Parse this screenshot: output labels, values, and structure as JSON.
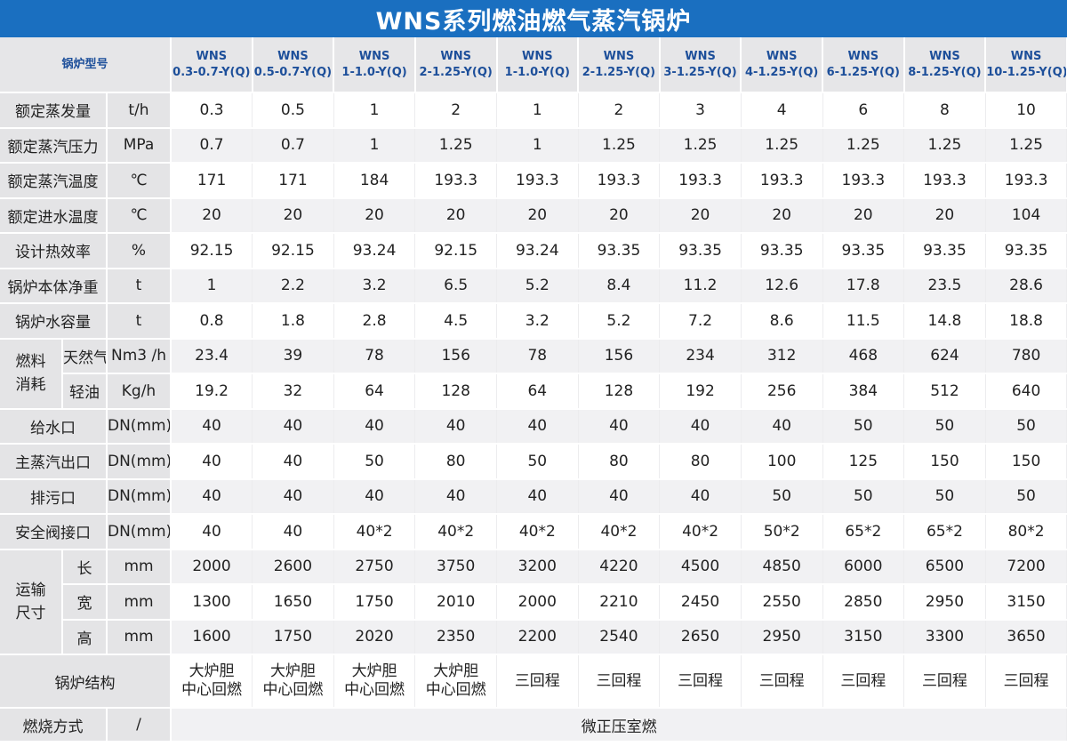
{
  "title": "WNS系列燃油燃气蒸汽锅炉",
  "header": {
    "label": "锅炉型号",
    "models": [
      [
        "WNS",
        "0.3-0.7-Y(Q)"
      ],
      [
        "WNS",
        "0.5-0.7-Y(Q)"
      ],
      [
        "WNS",
        "1-1.0-Y(Q)"
      ],
      [
        "WNS",
        "2-1.25-Y(Q)"
      ],
      [
        "WNS",
        "1-1.0-Y(Q)"
      ],
      [
        "WNS",
        "2-1.25-Y(Q)"
      ],
      [
        "WNS",
        "3-1.25-Y(Q)"
      ],
      [
        "WNS",
        "4-1.25-Y(Q)"
      ],
      [
        "WNS",
        "6-1.25-Y(Q)"
      ],
      [
        "WNS",
        "8-1.25-Y(Q)"
      ],
      [
        "WNS",
        "10-1.25-Y(Q)"
      ]
    ]
  },
  "rows": [
    {
      "label": "额定蒸发量",
      "unit": "t/h",
      "values": [
        "0.3",
        "0.5",
        "1",
        "2",
        "1",
        "2",
        "3",
        "4",
        "6",
        "8",
        "10"
      ]
    },
    {
      "label": "额定蒸汽压力",
      "unit": "MPa",
      "values": [
        "0.7",
        "0.7",
        "1",
        "1.25",
        "1",
        "1.25",
        "1.25",
        "1.25",
        "1.25",
        "1.25",
        "1.25"
      ]
    },
    {
      "label": "额定蒸汽温度",
      "unit": "℃",
      "values": [
        "171",
        "171",
        "184",
        "193.3",
        "193.3",
        "193.3",
        "193.3",
        "193.3",
        "193.3",
        "193.3",
        "193.3"
      ]
    },
    {
      "label": "额定进水温度",
      "unit": "℃",
      "values": [
        "20",
        "20",
        "20",
        "20",
        "20",
        "20",
        "20",
        "20",
        "20",
        "20",
        "104"
      ]
    },
    {
      "label": "设计热效率",
      "unit": "%",
      "values": [
        "92.15",
        "92.15",
        "93.24",
        "92.15",
        "93.24",
        "93.35",
        "93.35",
        "93.35",
        "93.35",
        "93.35",
        "93.35"
      ]
    },
    {
      "label": "锅炉本体净重",
      "unit": "t",
      "values": [
        "1",
        "2.2",
        "3.2",
        "6.5",
        "5.2",
        "8.4",
        "11.2",
        "12.6",
        "17.8",
        "23.5",
        "28.6"
      ]
    },
    {
      "label": "锅炉水容量",
      "unit": "t",
      "values": [
        "0.8",
        "1.8",
        "2.8",
        "4.5",
        "3.2",
        "5.2",
        "7.2",
        "8.6",
        "11.5",
        "14.8",
        "18.8"
      ]
    }
  ],
  "fuel": {
    "group_label": [
      "燃料",
      "消耗"
    ],
    "rows": [
      {
        "label": "天然气",
        "unit": "Nm3 /h",
        "values": [
          "23.4",
          "39",
          "78",
          "156",
          "78",
          "156",
          "234",
          "312",
          "468",
          "624",
          "780"
        ]
      },
      {
        "label": "轻油",
        "unit": "Kg/h",
        "values": [
          "19.2",
          "32",
          "64",
          "128",
          "64",
          "128",
          "192",
          "256",
          "384",
          "512",
          "640"
        ]
      }
    ]
  },
  "ports": [
    {
      "label": "给水口",
      "unit": "DN(mm)",
      "values": [
        "40",
        "40",
        "40",
        "40",
        "40",
        "40",
        "40",
        "40",
        "50",
        "50",
        "50"
      ]
    },
    {
      "label": "主蒸汽出口",
      "unit": "DN(mm)",
      "values": [
        "40",
        "40",
        "50",
        "80",
        "50",
        "80",
        "80",
        "100",
        "125",
        "150",
        "150"
      ]
    },
    {
      "label": "排污口",
      "unit": "DN(mm)",
      "values": [
        "40",
        "40",
        "40",
        "40",
        "40",
        "40",
        "40",
        "50",
        "50",
        "50",
        "50"
      ]
    },
    {
      "label": "安全阀接口",
      "unit": "DN(mm)",
      "values": [
        "40",
        "40",
        "40*2",
        "40*2",
        "40*2",
        "40*2",
        "40*2",
        "50*2",
        "65*2",
        "65*2",
        "80*2"
      ]
    }
  ],
  "transport": {
    "group_label": [
      "运输",
      "尺寸"
    ],
    "rows": [
      {
        "label": "长",
        "unit": "mm",
        "values": [
          "2000",
          "2600",
          "2750",
          "3750",
          "3200",
          "4220",
          "4500",
          "4850",
          "6000",
          "6500",
          "7200"
        ]
      },
      {
        "label": "宽",
        "unit": "mm",
        "values": [
          "1300",
          "1650",
          "1750",
          "2010",
          "2000",
          "2210",
          "2450",
          "2550",
          "2850",
          "2950",
          "3150"
        ]
      },
      {
        "label": "高",
        "unit": "mm",
        "values": [
          "1600",
          "1750",
          "2020",
          "2350",
          "2200",
          "2540",
          "2650",
          "2950",
          "3150",
          "3300",
          "3650"
        ]
      }
    ]
  },
  "structure": {
    "label": "锅炉结构",
    "values": [
      [
        "大炉胆",
        "中心回燃"
      ],
      [
        "大炉胆",
        "中心回燃"
      ],
      [
        "大炉胆",
        "中心回燃"
      ],
      [
        "大炉胆",
        "中心回燃"
      ],
      [
        "三回程"
      ],
      [
        "三回程"
      ],
      [
        "三回程"
      ],
      [
        "三回程"
      ],
      [
        "三回程"
      ],
      [
        "三回程"
      ],
      [
        "三回程"
      ]
    ]
  },
  "combustion": {
    "label": "燃烧方式",
    "unit": "/",
    "value": "微正压室燃"
  }
}
